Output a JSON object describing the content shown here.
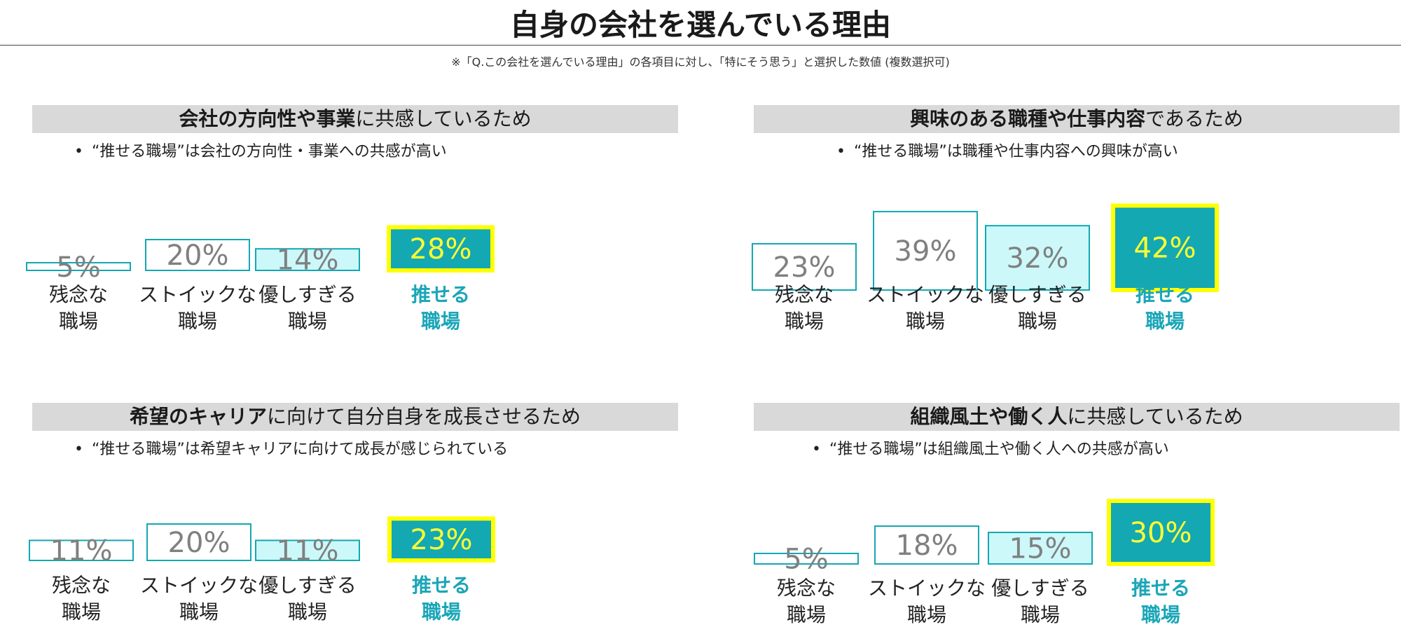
{
  "page": {
    "title": "自身の会社を選んでいる理由",
    "note": "※「Q.この会社を選んでいる理由」の各項目に対し、「特にそう思う」と選択した数値 (複数選択可)"
  },
  "colors": {
    "teal": "#13a8b2",
    "light_teal": "#ccf8fa",
    "highlight_border": "#ffff00",
    "value_gray": "#808080",
    "highlight_value": "#ffff33",
    "highlight_category": "#1aa6b7",
    "header_bg": "#d9d9d9"
  },
  "chart_data": [
    {
      "type": "bar",
      "title_bold": "会社の方向性や事業",
      "title_rest": "に共感しているため",
      "bullet": "“推せる職場”は会社の方向性・事業への共感が高い",
      "categories": [
        [
          "残念な",
          "職場"
        ],
        [
          "ストイックな",
          "職場"
        ],
        [
          "優しすぎる",
          "職場"
        ],
        [
          "推せる",
          "職場"
        ]
      ],
      "values": [
        5,
        20,
        14,
        28
      ],
      "labels": [
        "5%",
        "20%",
        "14%",
        "28%"
      ],
      "highlight_index": 3,
      "unit": "%"
    },
    {
      "type": "bar",
      "title_bold": "興味のある職種や仕事内容",
      "title_rest": "であるため",
      "bullet": "“推せる職場”は職種や仕事内容への興味が高い",
      "categories": [
        [
          "残念な",
          "職場"
        ],
        [
          "ストイックな",
          "職場"
        ],
        [
          "優しすぎる",
          "職場"
        ],
        [
          "推せる",
          "職場"
        ]
      ],
      "values": [
        23,
        39,
        32,
        42
      ],
      "labels": [
        "23%",
        "39%",
        "32%",
        "42%"
      ],
      "highlight_index": 3,
      "unit": "%"
    },
    {
      "type": "bar",
      "title_bold": "希望のキャリア",
      "title_rest": "に向けて自分自身を成長させるため",
      "bullet": "“推せる職場”は希望キャリアに向けて成長が感じられている",
      "categories": [
        [
          "残念な",
          "職場"
        ],
        [
          "ストイックな",
          "職場"
        ],
        [
          "優しすぎる",
          "職場"
        ],
        [
          "推せる",
          "職場"
        ]
      ],
      "values": [
        11,
        20,
        11,
        23
      ],
      "labels": [
        "11%",
        "20%",
        "11%",
        "23%"
      ],
      "highlight_index": 3,
      "unit": "%"
    },
    {
      "type": "bar",
      "title_bold": "組織風土や働く人",
      "title_rest": "に共感しているため",
      "bullet": "“推せる職場”は組織風土や働く人への共感が高い",
      "categories": [
        [
          "残念な",
          "職場"
        ],
        [
          "ストイックな",
          "職場"
        ],
        [
          "優しすぎる",
          "職場"
        ],
        [
          "推せる",
          "職場"
        ]
      ],
      "values": [
        5,
        18,
        15,
        30
      ],
      "labels": [
        "5%",
        "18%",
        "15%",
        "30%"
      ],
      "highlight_index": 3,
      "unit": "%"
    }
  ]
}
